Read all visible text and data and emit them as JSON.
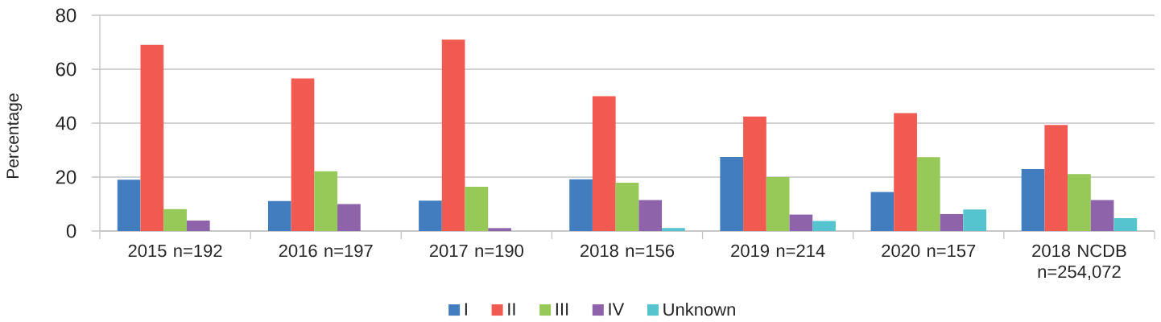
{
  "chart_data": {
    "type": "bar",
    "ylabel": "Percentage",
    "categories": [
      "2015 n=192",
      "2016 n=197",
      "2017 n=190",
      "2018 n=156",
      "2019 n=214",
      "2020 n=157",
      "2018 NCDB n=254,072"
    ],
    "series": [
      {
        "name": "I",
        "color": "#427dbf",
        "values": [
          19.0,
          11.1,
          11.3,
          19.2,
          27.5,
          14.5,
          23.0
        ]
      },
      {
        "name": "II",
        "color": "#f15a50",
        "values": [
          69.0,
          56.6,
          71.0,
          50.0,
          42.5,
          43.7,
          39.3
        ]
      },
      {
        "name": "III",
        "color": "#96c958",
        "values": [
          8.1,
          22.2,
          16.4,
          17.9,
          20.0,
          27.4,
          21.1
        ]
      },
      {
        "name": "IV",
        "color": "#8e63a9",
        "values": [
          3.9,
          10.0,
          1.1,
          11.5,
          6.1,
          6.3,
          11.5
        ]
      },
      {
        "name": "Unknown",
        "color": "#56c4cf",
        "values": [
          null,
          null,
          null,
          1.1,
          3.7,
          8.0,
          4.8
        ]
      }
    ],
    "ylim": [
      0,
      80
    ],
    "yticks": [
      0,
      20,
      40,
      60,
      80
    ],
    "grid": "y",
    "legend": "bottom"
  }
}
